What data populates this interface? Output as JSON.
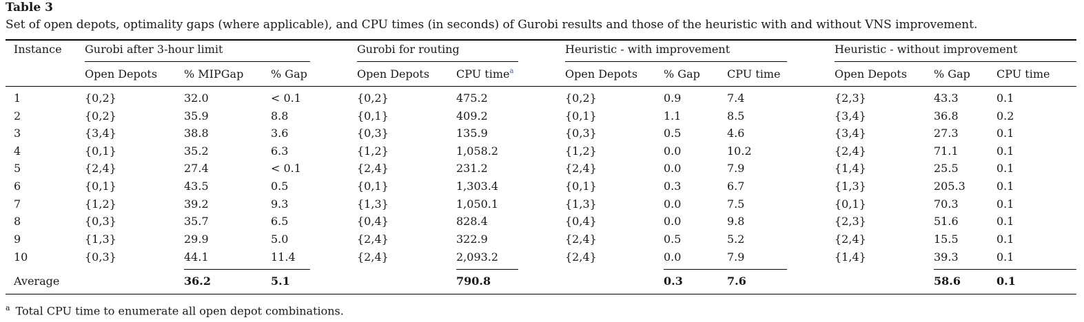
{
  "table": {
    "label": "Table 3",
    "caption": "Set of open depots, optimality gaps (where applicable), and CPU times (in seconds) of Gurobi results and those of the heuristic with and without VNS improvement.",
    "instance_header": "Instance",
    "groups": [
      "Gurobi after 3-hour limit",
      "Gurobi for routing",
      "Heuristic - with improvement",
      "Heuristic - without improvement"
    ],
    "subheaders": [
      "Open Depots",
      "% MIPGap",
      "% Gap",
      "Open Depots",
      "CPU time",
      "Open Depots",
      "% Gap",
      "CPU time",
      "Open Depots",
      "% Gap",
      "CPU time"
    ],
    "footnote_marker": "a",
    "rows": [
      [
        "1",
        "{0,2}",
        "32.0",
        "< 0.1",
        "{0,2}",
        "475.2",
        "{0,2}",
        "0.9",
        "7.4",
        "{2,3}",
        "43.3",
        "0.1"
      ],
      [
        "2",
        "{0,2}",
        "35.9",
        "8.8",
        "{0,1}",
        "409.2",
        "{0,1}",
        "1.1",
        "8.5",
        "{3,4}",
        "36.8",
        "0.2"
      ],
      [
        "3",
        "{3,4}",
        "38.8",
        "3.6",
        "{0,3}",
        "135.9",
        "{0,3}",
        "0.5",
        "4.6",
        "{3,4}",
        "27.3",
        "0.1"
      ],
      [
        "4",
        "{0,1}",
        "35.2",
        "6.3",
        "{1,2}",
        "1,058.2",
        "{1,2}",
        "0.0",
        "10.2",
        "{2,4}",
        "71.1",
        "0.1"
      ],
      [
        "5",
        "{2,4}",
        "27.4",
        "< 0.1",
        "{2,4}",
        "231.2",
        "{2,4}",
        "0.0",
        "7.9",
        "{1,4}",
        "25.5",
        "0.1"
      ],
      [
        "6",
        "{0,1}",
        "43.5",
        "0.5",
        "{0,1}",
        "1,303.4",
        "{0,1}",
        "0.3",
        "6.7",
        "{1,3}",
        "205.3",
        "0.1"
      ],
      [
        "7",
        "{1,2}",
        "39.2",
        "9.3",
        "{1,3}",
        "1,050.1",
        "{1,3}",
        "0.0",
        "7.5",
        "{0,1}",
        "70.3",
        "0.1"
      ],
      [
        "8",
        "{0,3}",
        "35.7",
        "6.5",
        "{0,4}",
        "828.4",
        "{0,4}",
        "0.0",
        "9.8",
        "{2,3}",
        "51.6",
        "0.1"
      ],
      [
        "9",
        "{1,3}",
        "29.9",
        "5.0",
        "{2,4}",
        "322.9",
        "{2,4}",
        "0.5",
        "5.2",
        "{2,4}",
        "15.5",
        "0.1"
      ],
      [
        "10",
        "{0,3}",
        "44.1",
        "11.4",
        "{2,4}",
        "2,093.2",
        "{2,4}",
        "0.0",
        "7.9",
        "{1,4}",
        "39.3",
        "0.1"
      ]
    ],
    "average": {
      "label": "Average",
      "mipgap": "36.2",
      "gap": "5.1",
      "routing_cpu": "790.8",
      "with_gap": "0.3",
      "with_cpu": "7.6",
      "without_gap": "58.6",
      "without_cpu": "0.1"
    },
    "footnote": {
      "marker": "a",
      "text": "Total CPU time to enumerate all open depot combinations."
    }
  }
}
